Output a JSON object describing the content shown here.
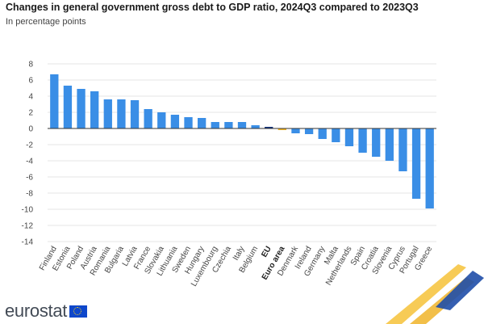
{
  "header": {
    "title": "Changes in general government gross debt to GDP ratio, 2024Q3 compared to 2023Q3",
    "subtitle": "In percentage points"
  },
  "logo": {
    "text": "eurostat"
  },
  "colors": {
    "bar": "#3a8ee6",
    "eu_bar": "#12317a",
    "euro_area_bar": "#f0b429",
    "grid": "#e6e6e6",
    "zero_line": "#333333"
  },
  "chart_data": {
    "type": "bar",
    "title": "Changes in general government gross debt to GDP ratio, 2024Q3 compared to 2023Q3",
    "ylabel": "In percentage points",
    "ylim": [
      -14,
      8
    ],
    "yticks": [
      8,
      6,
      4,
      2,
      0,
      -2,
      -4,
      -6,
      -8,
      -10,
      -12,
      -14
    ],
    "grid": true,
    "categories": [
      "Finland",
      "Estonia",
      "Poland",
      "Austria",
      "Romania",
      "Bulgaria",
      "Latvia",
      "France",
      "Slovakia",
      "Lithuania",
      "Sweden",
      "Hungary",
      "Luxembourg",
      "Czechia",
      "Italy",
      "Belgium",
      "EU",
      "Euro area",
      "Denmark",
      "Ireland",
      "Germany",
      "Malta",
      "Netherlands",
      "Spain",
      "Croatia",
      "Slovenia",
      "Cyprus",
      "Portugal",
      "Greece"
    ],
    "values": [
      6.7,
      5.3,
      4.9,
      4.6,
      3.6,
      3.6,
      3.5,
      2.4,
      2.0,
      1.7,
      1.4,
      1.3,
      0.8,
      0.8,
      0.8,
      0.4,
      0.2,
      -0.2,
      -0.6,
      -0.7,
      -1.3,
      -1.7,
      -2.2,
      -3.0,
      -3.5,
      -4.0,
      -5.3,
      -8.7,
      -9.9
    ],
    "highlight": {
      "EU": "eu",
      "Euro area": "euro_area"
    }
  }
}
